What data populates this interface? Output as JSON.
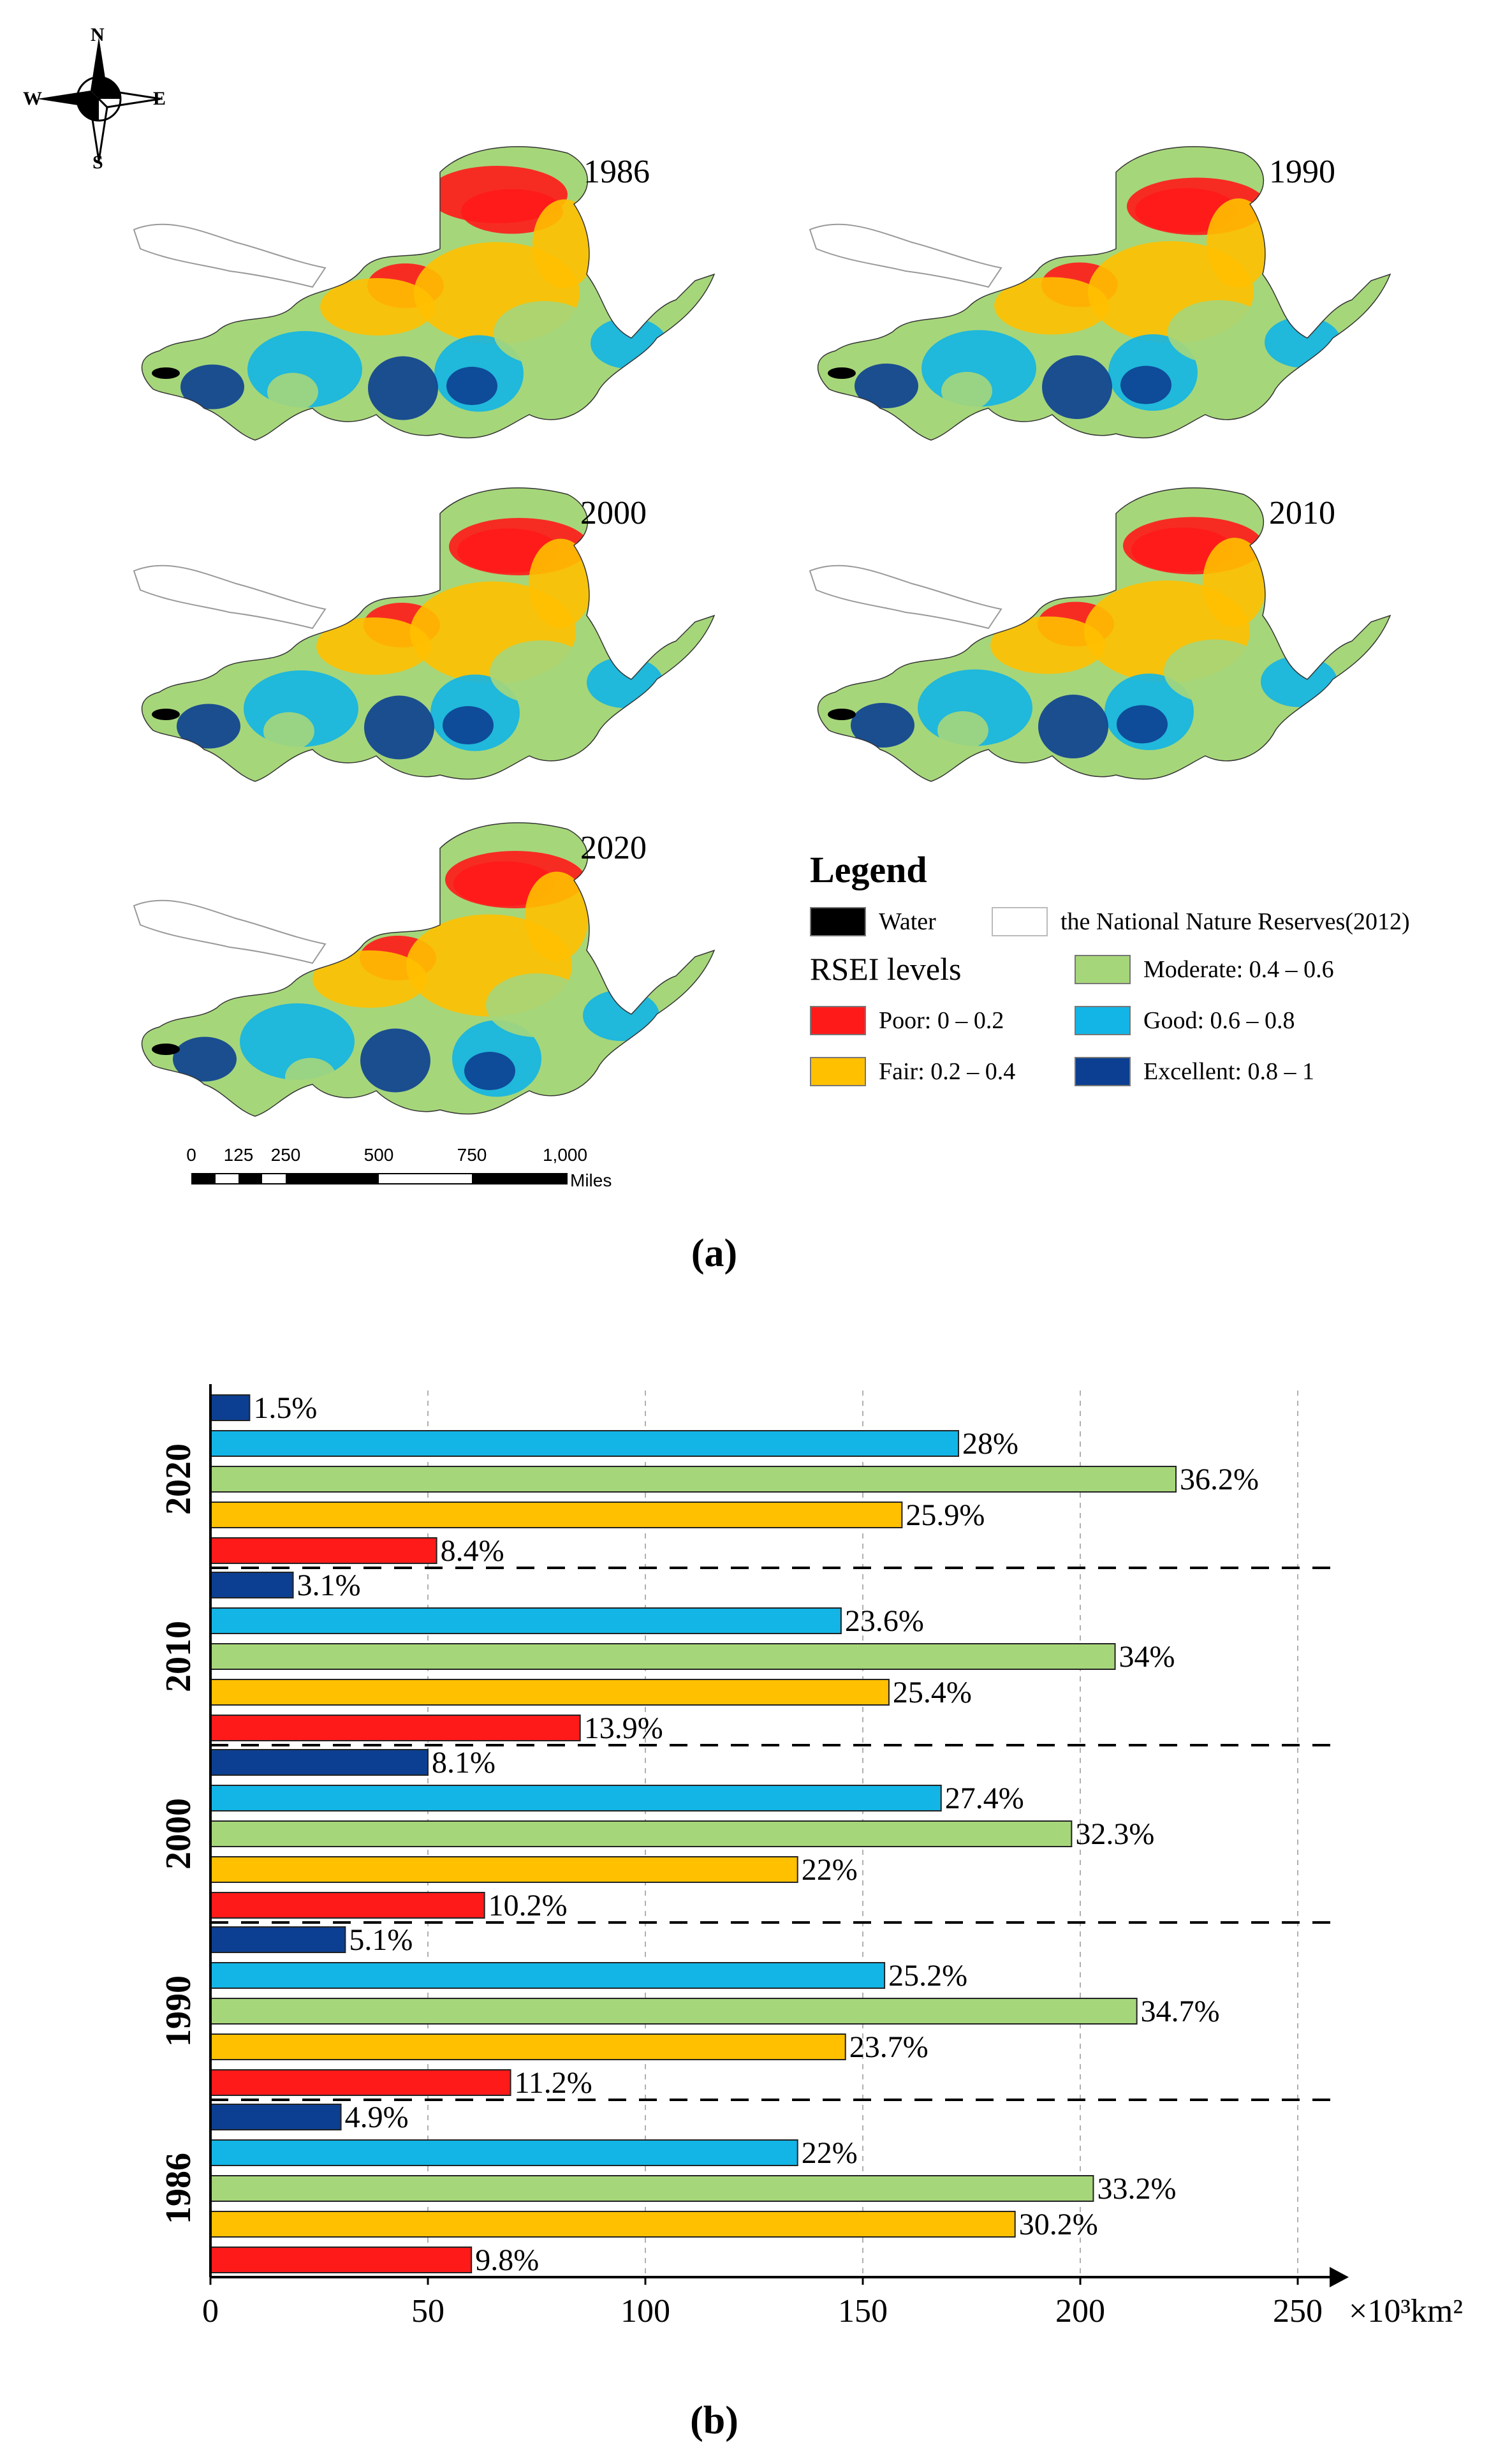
{
  "compass": {
    "north": "N",
    "south": "S",
    "east": "E",
    "west": "W"
  },
  "maps": [
    {
      "year": "1986"
    },
    {
      "year": "1990"
    },
    {
      "year": "2000"
    },
    {
      "year": "2010"
    },
    {
      "year": "2020"
    }
  ],
  "legend": {
    "title": "Legend",
    "water": "Water",
    "reserves": "the National Nature Reserves(2012)",
    "levels_title": "RSEI levels",
    "levels": [
      {
        "label": "Poor: 0 – 0.2",
        "color": "#ff1a1a"
      },
      {
        "label": "Fair: 0.2 – 0.4",
        "color": "#ffc000"
      },
      {
        "label": "Moderate: 0.4 – 0.6",
        "color": "#a6d67a"
      },
      {
        "label": "Good: 0.6 – 0.8",
        "color": "#12b5e6"
      },
      {
        "label": "Excellent: 0.8 – 1",
        "color": "#0c3f91"
      }
    ]
  },
  "scalebar": {
    "labels": [
      "0",
      "125",
      "250",
      "500",
      "750",
      "1,000"
    ],
    "unit": "Miles"
  },
  "panel_labels": {
    "a": "(a)",
    "b": "(b)"
  },
  "chart_data": {
    "type": "bar",
    "orientation": "horizontal",
    "unit_label": "×10³km²",
    "xlim": [
      0,
      250
    ],
    "x_ticks": [
      0,
      50,
      100,
      150,
      200,
      250
    ],
    "x_tick_labels": [
      "0",
      "50",
      "100",
      "150",
      "200",
      "250"
    ],
    "grid": "vertical dashed",
    "groups": [
      {
        "year": "2020",
        "bars": [
          {
            "level": "Excellent",
            "value": 9,
            "label": "1.5%"
          },
          {
            "level": "Good",
            "value": 172,
            "label": "28%"
          },
          {
            "level": "Moderate",
            "value": 222,
            "label": "36.2%"
          },
          {
            "level": "Fair",
            "value": 159,
            "label": "25.9%"
          },
          {
            "level": "Poor",
            "value": 52,
            "label": "8.4%"
          }
        ]
      },
      {
        "year": "2010",
        "bars": [
          {
            "level": "Excellent",
            "value": 19,
            "label": "3.1%"
          },
          {
            "level": "Good",
            "value": 145,
            "label": "23.6%"
          },
          {
            "level": "Moderate",
            "value": 208,
            "label": "34%"
          },
          {
            "level": "Fair",
            "value": 156,
            "label": "25.4%"
          },
          {
            "level": "Poor",
            "value": 85,
            "label": "13.9%"
          }
        ]
      },
      {
        "year": "2000",
        "bars": [
          {
            "level": "Excellent",
            "value": 50,
            "label": "8.1%"
          },
          {
            "level": "Good",
            "value": 168,
            "label": "27.4%"
          },
          {
            "level": "Moderate",
            "value": 198,
            "label": "32.3%"
          },
          {
            "level": "Fair",
            "value": 135,
            "label": "22%"
          },
          {
            "level": "Poor",
            "value": 63,
            "label": "10.2%"
          }
        ]
      },
      {
        "year": "1990",
        "bars": [
          {
            "level": "Excellent",
            "value": 31,
            "label": "5.1%"
          },
          {
            "level": "Good",
            "value": 155,
            "label": "25.2%"
          },
          {
            "level": "Moderate",
            "value": 213,
            "label": "34.7%"
          },
          {
            "level": "Fair",
            "value": 146,
            "label": "23.7%"
          },
          {
            "level": "Poor",
            "value": 69,
            "label": "11.2%"
          }
        ]
      },
      {
        "year": "1986",
        "bars": [
          {
            "level": "Excellent",
            "value": 30,
            "label": "4.9%"
          },
          {
            "level": "Good",
            "value": 135,
            "label": "22%"
          },
          {
            "level": "Moderate",
            "value": 203,
            "label": "33.2%"
          },
          {
            "level": "Fair",
            "value": 185,
            "label": "30.2%"
          },
          {
            "level": "Poor",
            "value": 60,
            "label": "9.8%"
          }
        ]
      }
    ]
  }
}
